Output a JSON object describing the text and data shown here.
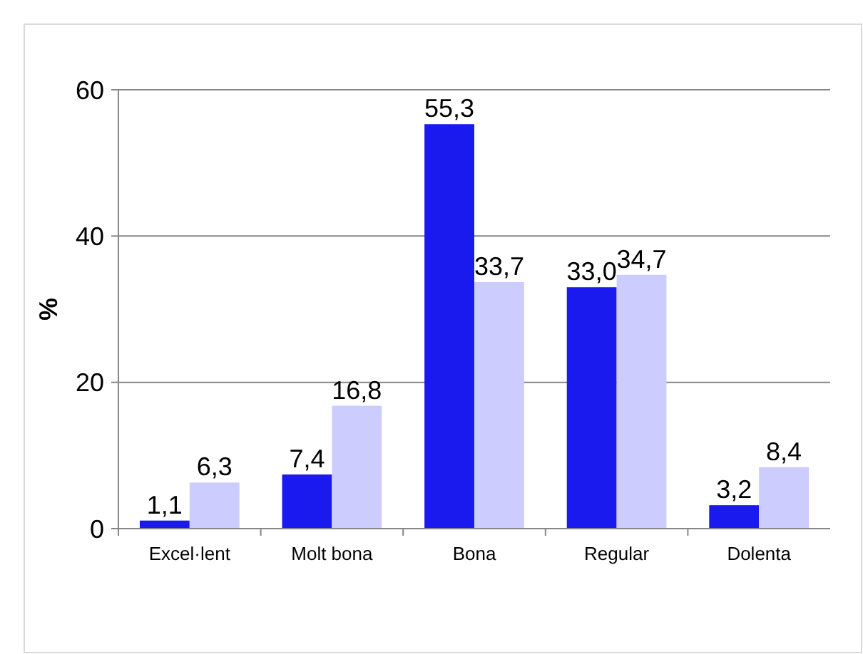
{
  "chart_data": {
    "type": "bar",
    "ylabel": "%",
    "categories": [
      "Excel·lent",
      "Molt bona",
      "Bona",
      "Regular",
      "Dolenta"
    ],
    "series": [
      {
        "color": "#1a1aee",
        "values": [
          1.1,
          7.4,
          55.3,
          33.0,
          3.2
        ],
        "value_labels": [
          "1,1",
          "7,4",
          "55,3",
          "33,0",
          "3,2"
        ]
      },
      {
        "color": "#ccccff",
        "values": [
          6.3,
          16.8,
          33.7,
          34.7,
          8.4
        ],
        "value_labels": [
          "6,3",
          "16,8",
          "33,7",
          "34,7",
          "8,4"
        ]
      }
    ],
    "ylim": [
      0,
      60
    ],
    "yticks": [
      0,
      20,
      40,
      60
    ],
    "grid": "y"
  }
}
